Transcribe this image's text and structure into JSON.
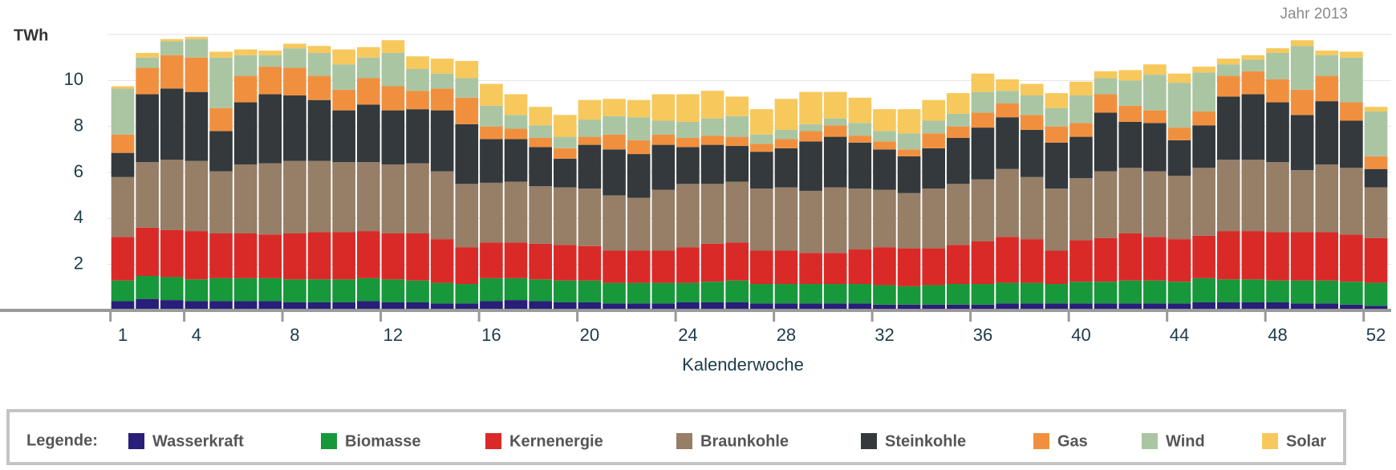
{
  "chart_data": {
    "type": "stacked_bar",
    "subtitle": "Jahr 2013",
    "y_label": "TWh",
    "x_label": "Kalenderwoche",
    "legend_title": "Legende:",
    "categories": [
      "1",
      null,
      null,
      "4",
      null,
      null,
      null,
      "8",
      null,
      null,
      null,
      "12",
      null,
      null,
      null,
      "16",
      null,
      null,
      null,
      "20",
      null,
      null,
      null,
      "24",
      null,
      null,
      null,
      "28",
      null,
      null,
      null,
      "32",
      null,
      null,
      null,
      "36",
      null,
      null,
      null,
      "40",
      null,
      null,
      null,
      "44",
      null,
      null,
      null,
      "48",
      null,
      null,
      null,
      "52"
    ],
    "ylim": [
      0,
      12
    ],
    "yticks": [
      2,
      4,
      6,
      8,
      10
    ],
    "grid": true,
    "series": [
      {
        "name": "Wasserkraft",
        "color": "#2a1f78",
        "values": [
          0.4,
          0.5,
          0.45,
          0.4,
          0.4,
          0.4,
          0.4,
          0.35,
          0.35,
          0.35,
          0.4,
          0.35,
          0.35,
          0.3,
          0.3,
          0.4,
          0.45,
          0.4,
          0.35,
          0.35,
          0.3,
          0.3,
          0.3,
          0.35,
          0.35,
          0.35,
          0.3,
          0.3,
          0.3,
          0.3,
          0.3,
          0.25,
          0.25,
          0.25,
          0.25,
          0.25,
          0.3,
          0.3,
          0.3,
          0.3,
          0.3,
          0.3,
          0.3,
          0.3,
          0.35,
          0.35,
          0.35,
          0.35,
          0.3,
          0.3,
          0.25,
          0.2
        ]
      },
      {
        "name": "Biomasse",
        "color": "#17983a",
        "values": [
          0.9,
          1.0,
          1.0,
          0.95,
          1.0,
          1.0,
          1.0,
          1.0,
          1.0,
          1.0,
          1.0,
          1.0,
          0.95,
          0.9,
          0.85,
          1.0,
          0.95,
          0.95,
          0.95,
          0.95,
          0.9,
          0.9,
          0.9,
          0.85,
          0.9,
          0.95,
          0.85,
          0.85,
          0.85,
          0.85,
          0.85,
          0.85,
          0.8,
          0.85,
          0.9,
          0.9,
          0.9,
          0.9,
          0.85,
          0.95,
          0.95,
          1.0,
          1.0,
          0.95,
          1.05,
          1.0,
          1.0,
          0.95,
          1.0,
          1.0,
          1.0,
          1.0
        ]
      },
      {
        "name": "Kernenergie",
        "color": "#da2a28",
        "values": [
          1.9,
          2.1,
          2.05,
          2.1,
          1.95,
          1.95,
          1.9,
          2.0,
          2.05,
          2.05,
          2.05,
          2.0,
          2.05,
          1.9,
          1.6,
          1.55,
          1.55,
          1.55,
          1.55,
          1.5,
          1.4,
          1.4,
          1.4,
          1.55,
          1.65,
          1.65,
          1.45,
          1.45,
          1.35,
          1.35,
          1.5,
          1.65,
          1.65,
          1.6,
          1.7,
          1.85,
          2.0,
          1.9,
          1.45,
          1.8,
          1.9,
          2.05,
          1.9,
          1.85,
          1.85,
          2.1,
          2.1,
          2.1,
          2.1,
          2.1,
          2.05,
          1.95
        ]
      },
      {
        "name": "Braunkohle",
        "color": "#967e67",
        "values": [
          2.6,
          2.85,
          3.05,
          3.05,
          2.7,
          3.0,
          3.1,
          3.15,
          3.1,
          3.05,
          3.0,
          3.0,
          3.05,
          2.95,
          2.75,
          2.6,
          2.65,
          2.5,
          2.5,
          2.5,
          2.4,
          2.3,
          2.65,
          2.75,
          2.6,
          2.65,
          2.7,
          2.75,
          2.7,
          2.85,
          2.65,
          2.5,
          2.4,
          2.6,
          2.65,
          2.7,
          2.95,
          2.7,
          2.7,
          2.7,
          2.9,
          2.85,
          2.85,
          2.75,
          2.95,
          3.1,
          3.1,
          3.05,
          2.7,
          2.95,
          2.9,
          2.2
        ]
      },
      {
        "name": "Steinkohle",
        "color": "#33393c",
        "values": [
          1.05,
          2.95,
          3.1,
          3.0,
          1.75,
          2.7,
          3.0,
          2.85,
          2.65,
          2.25,
          2.5,
          2.35,
          2.35,
          2.65,
          2.6,
          1.9,
          1.85,
          1.7,
          1.25,
          1.9,
          2.0,
          1.9,
          1.95,
          1.6,
          1.7,
          1.55,
          1.6,
          1.7,
          2.15,
          2.2,
          2.0,
          1.75,
          1.6,
          1.75,
          2.0,
          2.25,
          2.25,
          2.05,
          2.0,
          1.8,
          2.55,
          2.0,
          2.1,
          1.55,
          1.85,
          2.75,
          2.85,
          2.6,
          2.4,
          2.75,
          2.05,
          0.8
        ]
      },
      {
        "name": "Gas",
        "color": "#f0903f",
        "values": [
          0.8,
          1.15,
          1.45,
          1.5,
          1.0,
          1.15,
          1.2,
          1.2,
          1.05,
          0.9,
          1.15,
          1.05,
          0.8,
          0.95,
          1.15,
          0.55,
          0.45,
          0.4,
          0.45,
          0.35,
          0.65,
          0.6,
          0.45,
          0.4,
          0.4,
          0.4,
          0.35,
          0.4,
          0.45,
          0.5,
          0.3,
          0.35,
          0.3,
          0.65,
          0.5,
          0.65,
          0.6,
          0.65,
          0.7,
          0.6,
          0.8,
          0.7,
          0.55,
          0.55,
          0.6,
          0.9,
          1.0,
          1.0,
          1.1,
          1.1,
          0.8,
          0.55
        ]
      },
      {
        "name": "Wind",
        "color": "#aac5a2",
        "values": [
          2.0,
          0.45,
          0.6,
          0.8,
          2.2,
          0.9,
          0.5,
          0.85,
          1.0,
          1.1,
          0.9,
          1.45,
          0.95,
          0.65,
          0.85,
          0.9,
          0.6,
          0.55,
          0.5,
          0.75,
          0.8,
          1.0,
          0.6,
          0.7,
          0.75,
          0.9,
          0.4,
          0.4,
          0.3,
          0.3,
          0.55,
          0.45,
          0.7,
          0.55,
          0.55,
          0.9,
          0.55,
          0.85,
          0.8,
          1.2,
          0.7,
          1.1,
          1.55,
          1.95,
          1.7,
          0.5,
          0.5,
          1.15,
          1.9,
          0.9,
          1.95,
          1.95
        ]
      },
      {
        "name": "Solar",
        "color": "#f7c85c",
        "values": [
          0.1,
          0.2,
          0.1,
          0.1,
          0.25,
          0.25,
          0.2,
          0.2,
          0.3,
          0.65,
          0.45,
          0.55,
          0.55,
          0.65,
          0.75,
          0.95,
          0.9,
          0.8,
          0.95,
          0.85,
          0.75,
          0.75,
          1.15,
          1.2,
          1.2,
          0.85,
          1.1,
          1.35,
          1.4,
          1.15,
          1.1,
          0.95,
          1.05,
          0.9,
          0.9,
          0.8,
          0.5,
          0.5,
          0.65,
          0.6,
          0.3,
          0.45,
          0.45,
          0.4,
          0.25,
          0.25,
          0.2,
          0.2,
          0.25,
          0.2,
          0.25,
          0.2
        ]
      }
    ]
  }
}
